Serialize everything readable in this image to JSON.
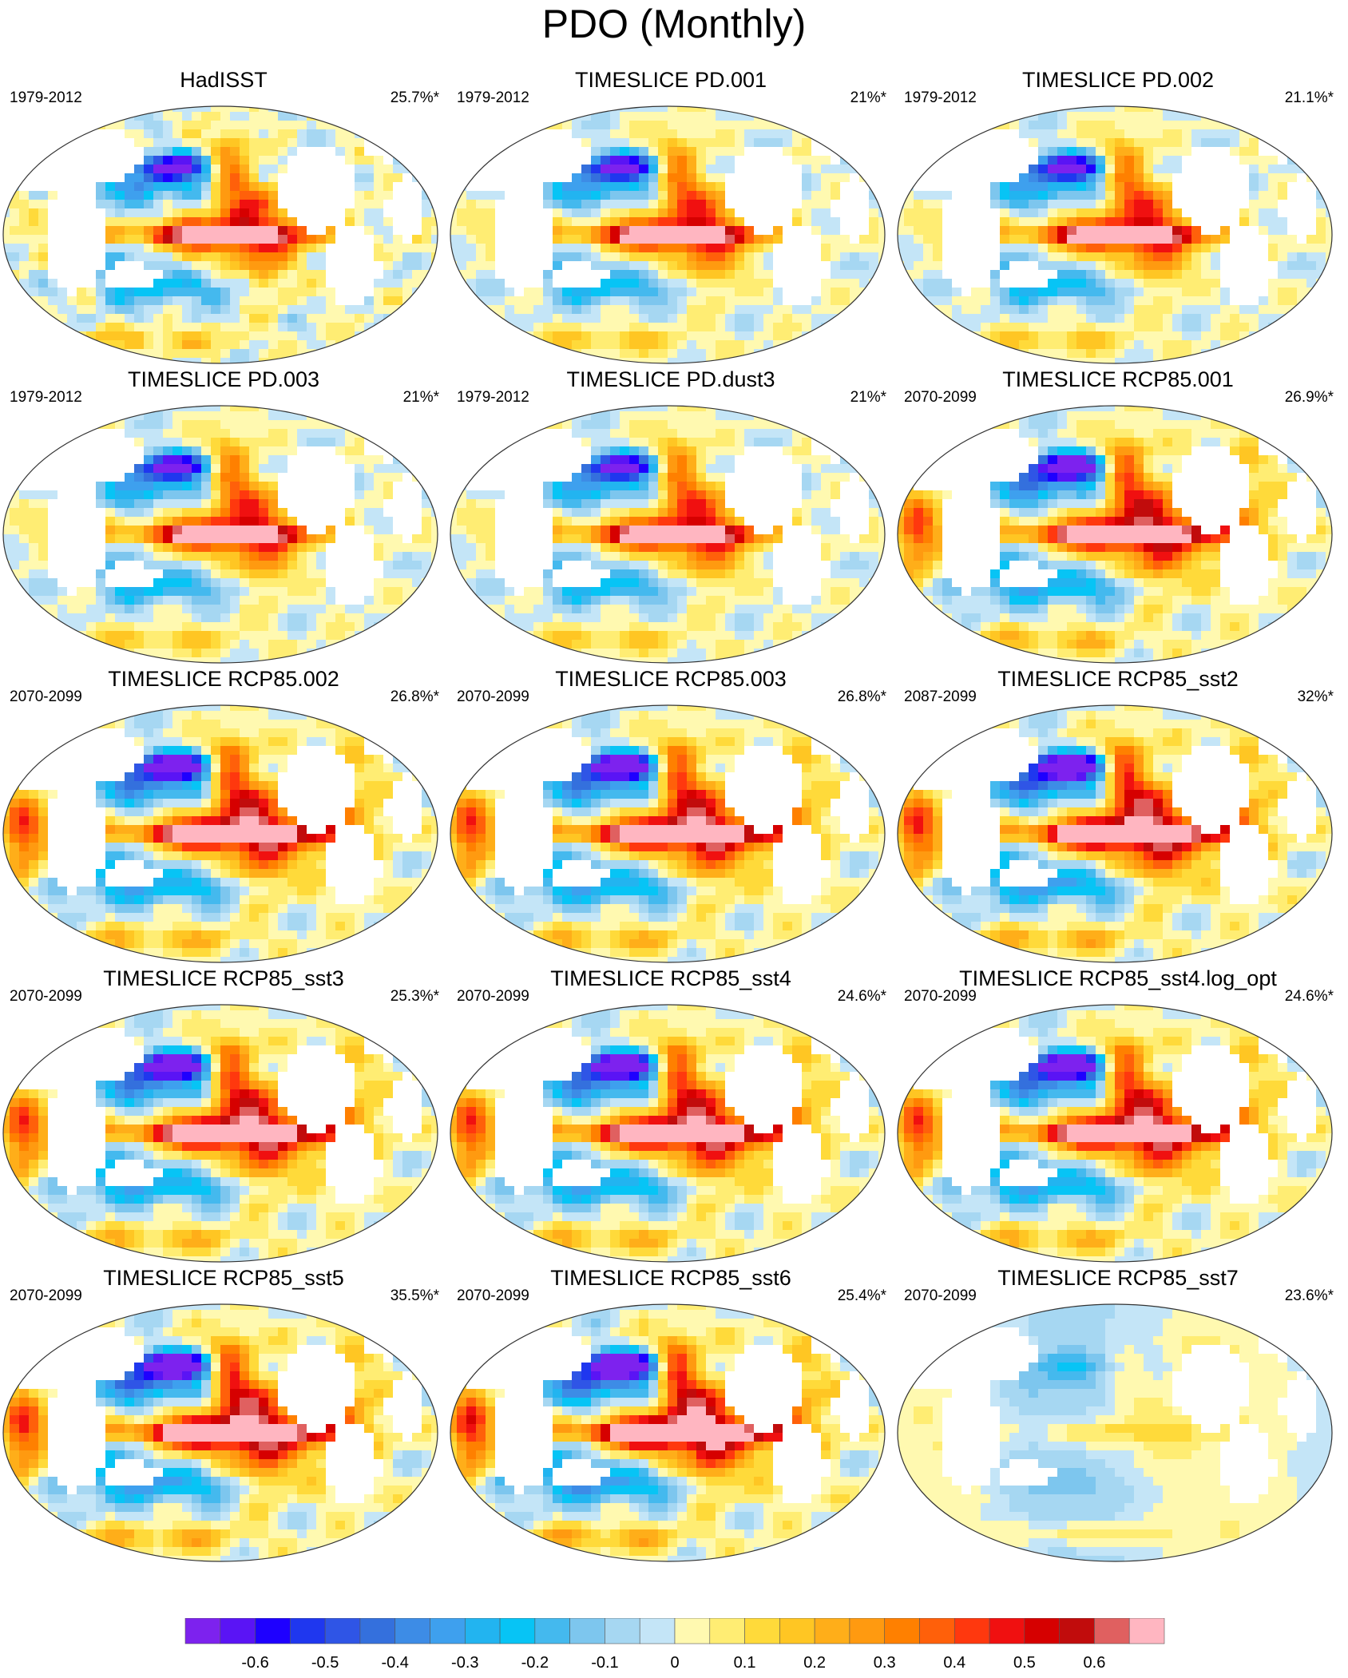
{
  "title": "PDO (Monthly)",
  "chart_data": {
    "type": "heatmap",
    "title": "PDO (Monthly)",
    "description_units": "regression of SST onto PDO index",
    "panels": [
      {
        "name": "HadISST",
        "period": "1979-2012",
        "pct": "25.7%*",
        "pattern": "obs",
        "amp": 0.55
      },
      {
        "name": "TIMESLICE PD.001",
        "period": "1979-2012",
        "pct": "21%*",
        "pattern": "pd",
        "amp": 0.55
      },
      {
        "name": "TIMESLICE PD.002",
        "period": "1979-2012",
        "pct": "21.1%*",
        "pattern": "pd",
        "amp": 0.55
      },
      {
        "name": "TIMESLICE PD.003",
        "period": "1979-2012",
        "pct": "21%*",
        "pattern": "pd",
        "amp": 0.55
      },
      {
        "name": "TIMESLICE PD.dust3",
        "period": "1979-2012",
        "pct": "21%*",
        "pattern": "pd",
        "amp": 0.55
      },
      {
        "name": "TIMESLICE RCP85.001",
        "period": "2070-2099",
        "pct": "26.9%*",
        "pattern": "rcp",
        "amp": 0.65
      },
      {
        "name": "TIMESLICE RCP85.002",
        "period": "2070-2099",
        "pct": "26.8%*",
        "pattern": "rcp",
        "amp": 0.68
      },
      {
        "name": "TIMESLICE RCP85.003",
        "period": "2070-2099",
        "pct": "26.8%*",
        "pattern": "rcp",
        "amp": 0.68
      },
      {
        "name": "TIMESLICE RCP85_sst2",
        "period": "2087-2099",
        "pct": "32%*",
        "pattern": "rcp",
        "amp": 0.72
      },
      {
        "name": "TIMESLICE RCP85_sst3",
        "period": "2070-2099",
        "pct": "25.3%*",
        "pattern": "rcp",
        "amp": 0.68
      },
      {
        "name": "TIMESLICE RCP85_sst4",
        "period": "2070-2099",
        "pct": "24.6%*",
        "pattern": "rcp",
        "amp": 0.68
      },
      {
        "name": "TIMESLICE RCP85_sst4.log_opt",
        "period": "2070-2099",
        "pct": "24.6%*",
        "pattern": "rcp",
        "amp": 0.68
      },
      {
        "name": "TIMESLICE RCP85_sst5",
        "period": "2070-2099",
        "pct": "35.5%*",
        "pattern": "rcp",
        "amp": 0.72
      },
      {
        "name": "TIMESLICE RCP85_sst6",
        "period": "2070-2099",
        "pct": "25.4%*",
        "pattern": "rcp",
        "amp": 0.75
      },
      {
        "name": "TIMESLICE RCP85_sst7",
        "period": "2070-2099",
        "pct": "23.6%*",
        "pattern": "weak",
        "amp": 0.3
      }
    ],
    "colorbar": {
      "ticks": [
        "-0.6",
        "-0.5",
        "-0.4",
        "-0.3",
        "-0.2",
        "-0.1",
        "0",
        "0.1",
        "0.2",
        "0.3",
        "0.4",
        "0.5",
        "0.6"
      ],
      "range": [
        -0.7,
        0.7
      ],
      "step": 0.05,
      "colors": [
        "#7d22ee",
        "#5a14f5",
        "#1e00ff",
        "#1f37ef",
        "#2f55e6",
        "#3470dd",
        "#3d8ce6",
        "#3ea0ee",
        "#22b4f0",
        "#07c4f5",
        "#44b9ee",
        "#7dc6ee",
        "#a6d7f2",
        "#c4e5f7",
        "#fff9b0",
        "#ffed73",
        "#ffda3a",
        "#ffc623",
        "#ffae19",
        "#ff9a10",
        "#ff8000",
        "#ff600a",
        "#ff380e",
        "#f01010",
        "#d60000",
        "#c10c0c",
        "#e06060",
        "#ffb6c1"
      ]
    }
  }
}
